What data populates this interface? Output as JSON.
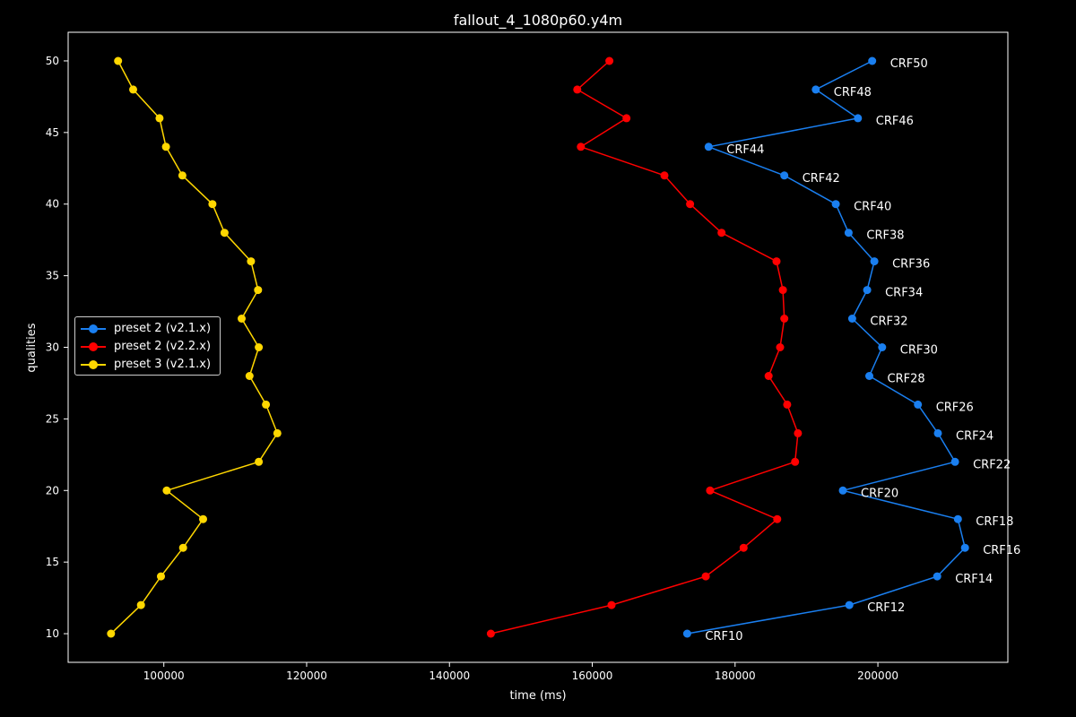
{
  "chart_data": {
    "type": "line",
    "title": "fallout_4_1080p60.y4m",
    "xlabel": "time (ms)",
    "ylabel": "qualities",
    "xlim": [
      86600,
      218200
    ],
    "ylim": [
      8,
      52
    ],
    "xticks": [
      100000,
      120000,
      140000,
      160000,
      180000,
      200000
    ],
    "xtick_labels": [
      "100000",
      "120000",
      "140000",
      "160000",
      "180000",
      "200000"
    ],
    "yticks": [
      10,
      15,
      20,
      25,
      30,
      35,
      40,
      45,
      50
    ],
    "ytick_labels": [
      "10",
      "15",
      "20",
      "25",
      "30",
      "35",
      "40",
      "45",
      "50"
    ],
    "grid": false,
    "legend_position": "center-left",
    "series": [
      {
        "name": "preset 2 (v2.1.x)",
        "color": "#1a7ff0",
        "y": [
          50,
          48,
          46,
          44,
          42,
          40,
          38,
          36,
          34,
          32,
          30,
          28,
          26,
          24,
          22,
          20,
          18,
          16,
          14,
          12,
          10
        ],
        "x": [
          199200,
          191300,
          197200,
          176300,
          186900,
          194100,
          195900,
          199500,
          198500,
          196400,
          200600,
          198800,
          205600,
          208400,
          210800,
          195100,
          211200,
          212200,
          208300,
          196000,
          173300
        ],
        "point_labels": [
          "CRF50",
          "CRF48",
          "CRF46",
          "CRF44",
          "CRF42",
          "CRF40",
          "CRF38",
          "CRF36",
          "CRF34",
          "CRF32",
          "CRF30",
          "CRF28",
          "CRF26",
          "CRF24",
          "CRF22",
          "CRF20",
          "CRF18",
          "CRF16",
          "CRF14",
          "CRF12",
          "CRF10"
        ]
      },
      {
        "name": "preset 2 (v2.2.x)",
        "color": "#ff0000",
        "y": [
          50,
          48,
          46,
          44,
          42,
          40,
          38,
          36,
          34,
          32,
          30,
          28,
          26,
          24,
          22,
          20,
          18,
          16,
          14,
          12,
          10
        ],
        "x": [
          162400,
          157900,
          164800,
          158400,
          170100,
          173700,
          178100,
          185800,
          186700,
          186900,
          186300,
          184700,
          187300,
          188800,
          188400,
          176500,
          185900,
          181200,
          175900,
          162700,
          145800
        ]
      },
      {
        "name": "preset 3 (v2.1.x)",
        "color": "#ffd700",
        "y": [
          50,
          48,
          46,
          44,
          42,
          40,
          38,
          36,
          34,
          32,
          30,
          28,
          26,
          24,
          22,
          20,
          18,
          16,
          14,
          12,
          10
        ],
        "x": [
          93600,
          95700,
          99400,
          100300,
          102600,
          106800,
          108500,
          112200,
          113200,
          110900,
          113300,
          112000,
          114300,
          115900,
          113300,
          100400,
          105500,
          102700,
          99600,
          96800,
          92600
        ]
      }
    ]
  }
}
